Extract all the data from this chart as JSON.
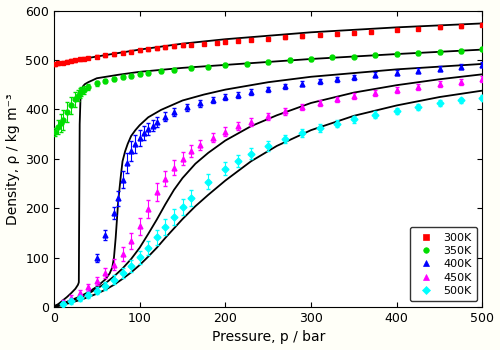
{
  "title": "",
  "xlabel": "Pressure, p / bar",
  "ylabel": "Density, ρ / kg m⁻³",
  "xlim": [
    0,
    500
  ],
  "ylim": [
    0,
    600
  ],
  "xticks": [
    0,
    100,
    200,
    300,
    400,
    500
  ],
  "yticks": [
    0,
    100,
    200,
    300,
    400,
    500,
    600
  ],
  "temperatures": [
    "300K",
    "350K",
    "400K",
    "450K",
    "500K"
  ],
  "colors": [
    "red",
    "#00dd00",
    "blue",
    "magenta",
    "cyan"
  ],
  "markers": [
    "s",
    "o",
    "^",
    "^",
    "D"
  ],
  "md_color": "black",
  "md_linewidth": 1.3,
  "mc_markersize": 3.5,
  "mc_elinewidth": 0.8,
  "mc_capsize": 1.5,
  "legend_loc": "lower right",
  "legend_fontsize": 8,
  "figsize": [
    5.0,
    3.5
  ],
  "dpi": 100,
  "background_color": "#fffff8",
  "axis_bg": "white",
  "pressures_300": [
    1,
    5,
    10,
    15,
    20,
    25,
    30,
    35,
    40,
    50,
    60,
    70,
    80,
    90,
    100,
    110,
    120,
    130,
    140,
    150,
    160,
    175,
    190,
    200,
    215,
    230,
    250,
    270,
    290,
    310,
    330,
    350,
    370,
    400,
    425,
    450,
    475,
    500
  ],
  "density_300": [
    491,
    493,
    494,
    496,
    498,
    499,
    501,
    502,
    504,
    507,
    510,
    512,
    515,
    517,
    520,
    522,
    524,
    526,
    528,
    530,
    531,
    533,
    535,
    537,
    539,
    541,
    543,
    546,
    548,
    551,
    553,
    555,
    557,
    561,
    563,
    566,
    568,
    571
  ],
  "err_300": [
    3,
    3,
    3,
    3,
    3,
    3,
    3,
    3,
    3,
    3,
    3,
    3,
    3,
    3,
    3,
    3,
    3,
    3,
    3,
    3,
    3,
    3,
    3,
    3,
    3,
    3,
    3,
    3,
    3,
    3,
    3,
    3,
    3,
    3,
    3,
    3,
    3,
    3
  ],
  "pressures_350": [
    1,
    5,
    8,
    10,
    15,
    20,
    25,
    28,
    30,
    32,
    35,
    40,
    50,
    60,
    70,
    80,
    90,
    100,
    110,
    125,
    140,
    160,
    180,
    200,
    225,
    250,
    275,
    300,
    325,
    350,
    375,
    400,
    425,
    450,
    475,
    500
  ],
  "density_350": [
    355,
    364,
    372,
    379,
    395,
    408,
    420,
    428,
    433,
    437,
    440,
    445,
    453,
    458,
    462,
    465,
    468,
    471,
    474,
    477,
    480,
    483,
    486,
    489,
    492,
    496,
    499,
    502,
    505,
    507,
    510,
    512,
    515,
    517,
    519,
    522
  ],
  "err_350_y": [
    8,
    14,
    18,
    20,
    20,
    18,
    15,
    12,
    10,
    9,
    8,
    6,
    5,
    4,
    4,
    4,
    4,
    4,
    4,
    4,
    4,
    4,
    4,
    4,
    4,
    4,
    4,
    4,
    4,
    4,
    4,
    4,
    4,
    4,
    4,
    4
  ],
  "pressures_400": [
    50,
    60,
    70,
    75,
    80,
    85,
    90,
    95,
    100,
    105,
    110,
    115,
    120,
    130,
    140,
    155,
    170,
    185,
    200,
    215,
    230,
    250,
    270,
    290,
    310,
    330,
    350,
    375,
    400,
    425,
    450,
    475,
    500
  ],
  "density_400": [
    100,
    145,
    190,
    220,
    258,
    292,
    316,
    330,
    342,
    352,
    360,
    367,
    374,
    385,
    394,
    404,
    412,
    419,
    425,
    430,
    435,
    441,
    447,
    452,
    457,
    461,
    465,
    470,
    474,
    478,
    482,
    486,
    490
  ],
  "err_400": [
    8,
    10,
    12,
    15,
    18,
    20,
    20,
    18,
    16,
    14,
    12,
    11,
    10,
    9,
    8,
    7,
    7,
    6,
    6,
    6,
    6,
    5,
    5,
    5,
    5,
    5,
    5,
    5,
    5,
    5,
    5,
    5,
    5
  ],
  "pressures_450": [
    10,
    20,
    30,
    40,
    50,
    60,
    70,
    80,
    90,
    100,
    110,
    120,
    130,
    140,
    150,
    160,
    170,
    185,
    200,
    215,
    230,
    250,
    270,
    290,
    310,
    330,
    350,
    375,
    400,
    425,
    450,
    475,
    500
  ],
  "density_450": [
    10,
    19,
    29,
    40,
    53,
    68,
    86,
    107,
    133,
    163,
    198,
    232,
    260,
    282,
    300,
    315,
    328,
    343,
    355,
    366,
    375,
    386,
    396,
    405,
    413,
    420,
    427,
    434,
    440,
    446,
    451,
    456,
    461
  ],
  "err_450": [
    5,
    5,
    6,
    7,
    8,
    10,
    12,
    14,
    16,
    18,
    18,
    18,
    16,
    15,
    13,
    12,
    11,
    10,
    9,
    8,
    8,
    7,
    7,
    6,
    6,
    6,
    6,
    6,
    6,
    6,
    6,
    6,
    6
  ],
  "pressures_500": [
    10,
    20,
    30,
    40,
    50,
    60,
    70,
    80,
    90,
    100,
    110,
    120,
    130,
    140,
    150,
    160,
    180,
    200,
    215,
    230,
    250,
    270,
    290,
    310,
    330,
    350,
    375,
    400,
    425,
    450,
    475,
    500
  ],
  "density_500": [
    6,
    12,
    18,
    25,
    33,
    43,
    55,
    68,
    83,
    101,
    120,
    141,
    162,
    183,
    203,
    221,
    254,
    280,
    296,
    310,
    326,
    340,
    352,
    362,
    371,
    380,
    389,
    397,
    405,
    412,
    418,
    424
  ],
  "err_500": [
    4,
    5,
    5,
    6,
    7,
    8,
    9,
    10,
    12,
    13,
    14,
    15,
    16,
    16,
    16,
    16,
    15,
    13,
    12,
    11,
    10,
    9,
    8,
    8,
    7,
    7,
    7,
    6,
    6,
    6,
    6,
    6
  ],
  "md_300_p": [
    0,
    2,
    5,
    10,
    20,
    30,
    50,
    75,
    100,
    150,
    200,
    300,
    400,
    500
  ],
  "md_300_rho": [
    488,
    489,
    491,
    493,
    497,
    501,
    507,
    514,
    521,
    533,
    542,
    556,
    566,
    574
  ],
  "md_350_p": [
    0,
    2,
    5,
    8,
    10,
    15,
    20,
    25,
    28,
    29,
    30,
    31,
    32,
    34,
    36,
    40,
    50,
    75,
    100,
    150,
    200,
    300,
    400,
    500
  ],
  "md_350_rho": [
    2,
    3,
    6,
    10,
    13,
    20,
    28,
    37,
    45,
    50,
    370,
    425,
    440,
    447,
    451,
    455,
    463,
    470,
    476,
    484,
    490,
    502,
    512,
    521
  ],
  "md_400_p": [
    0,
    5,
    10,
    20,
    30,
    40,
    50,
    60,
    65,
    68,
    70,
    72,
    75,
    78,
    80,
    83,
    86,
    90,
    95,
    100,
    110,
    125,
    150,
    175,
    200,
    250,
    300,
    400,
    500
  ],
  "md_400_rho": [
    2,
    4,
    7,
    14,
    21,
    30,
    41,
    56,
    68,
    80,
    100,
    140,
    215,
    265,
    295,
    315,
    330,
    346,
    358,
    368,
    384,
    399,
    418,
    430,
    440,
    455,
    466,
    481,
    492
  ],
  "md_450_p": [
    0,
    5,
    10,
    20,
    30,
    40,
    50,
    60,
    70,
    80,
    90,
    100,
    110,
    120,
    130,
    140,
    150,
    165,
    180,
    200,
    230,
    260,
    300,
    350,
    400,
    450,
    500
  ],
  "md_450_rho": [
    1,
    3,
    6,
    12,
    19,
    27,
    37,
    48,
    62,
    78,
    97,
    120,
    148,
    177,
    208,
    237,
    261,
    290,
    312,
    337,
    366,
    388,
    413,
    434,
    449,
    461,
    471
  ],
  "md_500_p": [
    0,
    5,
    10,
    20,
    30,
    40,
    50,
    60,
    70,
    80,
    90,
    100,
    110,
    120,
    130,
    140,
    150,
    165,
    180,
    200,
    230,
    260,
    300,
    350,
    400,
    450,
    500
  ],
  "md_500_rho": [
    1,
    2,
    4,
    9,
    14,
    20,
    27,
    35,
    45,
    57,
    70,
    85,
    102,
    120,
    140,
    159,
    178,
    204,
    227,
    256,
    295,
    326,
    358,
    387,
    408,
    425,
    438
  ]
}
